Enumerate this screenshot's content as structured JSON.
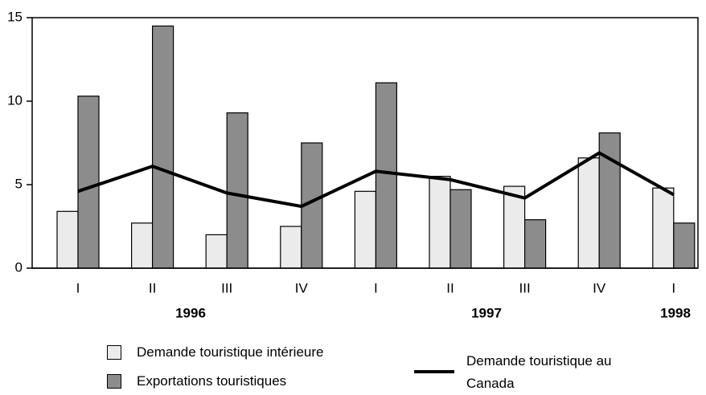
{
  "chart_data": {
    "type": "bar",
    "categories": [
      "I",
      "II",
      "III",
      "IV",
      "I",
      "II",
      "III",
      "IV",
      "I"
    ],
    "year_labels": [
      "1996",
      "1997",
      "1998"
    ],
    "series": [
      {
        "name": "Demande touristique intérieure",
        "color": "#ebebeb",
        "values": [
          3.4,
          2.7,
          2.0,
          2.5,
          4.6,
          5.5,
          4.9,
          6.6,
          4.8
        ]
      },
      {
        "name": "Exportations touristiques",
        "color": "#8c8c8c",
        "values": [
          10.3,
          14.5,
          9.3,
          7.5,
          11.1,
          4.7,
          2.9,
          8.1,
          2.7
        ]
      },
      {
        "name": "Demande touristique au Canada",
        "color": "#000000",
        "type": "line",
        "values": [
          4.6,
          6.1,
          4.5,
          3.7,
          5.8,
          5.3,
          4.2,
          6.9,
          4.4
        ]
      }
    ],
    "ylim": [
      0,
      15
    ],
    "yticks": [
      0,
      5,
      10,
      15
    ]
  }
}
